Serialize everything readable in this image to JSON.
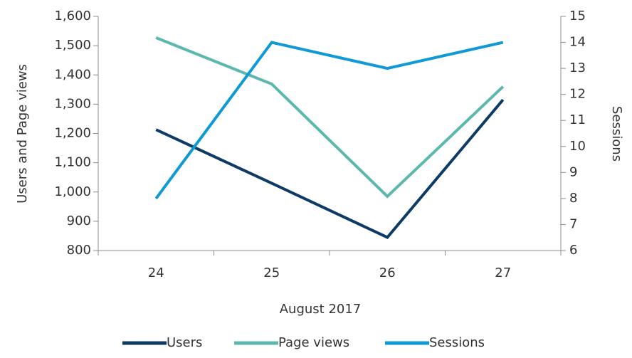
{
  "chart_data": {
    "type": "line",
    "categories": [
      "24",
      "25",
      "26",
      "27"
    ],
    "xlabel": "August 2017",
    "ylabel": "Users and Page views",
    "y2label": "Sessions",
    "series": [
      {
        "name": "Users",
        "color": "#0d3b66",
        "values": [
          1213,
          1030,
          845,
          1315
        ]
      },
      {
        "name": "Page views",
        "color": "#5cb8ae",
        "values": [
          1527,
          1369,
          985,
          1360
        ]
      },
      {
        "name": "Sessions",
        "color": "#0f9ad6",
        "values": [
          8,
          14,
          13,
          14
        ],
        "axis": "y2"
      }
    ],
    "ylim": [
      800,
      1600
    ],
    "yticks": [
      800,
      900,
      {
        "value": 1000,
        "label": "1,000"
      },
      {
        "value": 1100,
        "label": "1,100"
      },
      {
        "value": 1200,
        "label": "1,200"
      },
      {
        "value": 1300,
        "label": "1,300"
      },
      {
        "value": 1400,
        "label": "1,400"
      },
      {
        "value": 1500,
        "label": "1,500"
      },
      {
        "value": 1600,
        "label": "1,600"
      }
    ],
    "y2lim": [
      6,
      15
    ],
    "y2ticks": [
      6,
      7,
      8,
      9,
      10,
      11,
      12,
      13,
      14,
      15
    ],
    "legend": "bottom"
  }
}
